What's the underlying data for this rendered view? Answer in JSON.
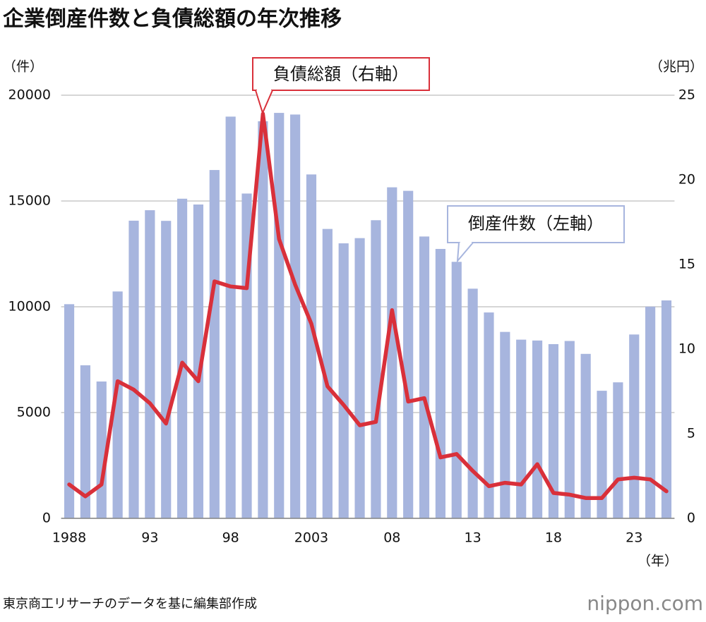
{
  "chart_data": {
    "type": "bar-line",
    "title": "企業倒産件数と負債総額の年次推移",
    "y_label": "（件）",
    "y2_label": "（兆円）",
    "x_label": "（年）",
    "source": "東京商工リサーチのデータを基に編集部作成",
    "logo": "nippon.com",
    "categories": [
      "1988",
      null,
      null,
      null,
      null,
      "93",
      null,
      null,
      null,
      null,
      "98",
      null,
      null,
      null,
      null,
      "2003",
      null,
      null,
      null,
      null,
      "08",
      null,
      null,
      null,
      null,
      "13",
      null,
      null,
      null,
      null,
      "18",
      null,
      null,
      null,
      null,
      "23",
      null,
      null
    ],
    "series": [
      {
        "name": "倒産件数（左軸）",
        "type": "bar",
        "color": "#a7b5de",
        "values": [
          10122,
          7234,
          6468,
          10723,
          14069,
          14564,
          14061,
          15108,
          14834,
          16464,
          18988,
          15352,
          18769,
          19164,
          19087,
          16255,
          13679,
          12998,
          13245,
          14091,
          15646,
          15480,
          13321,
          12734,
          12124,
          10855,
          9731,
          8812,
          8446,
          8405,
          8235,
          8383,
          7773,
          6030,
          6428,
          8690,
          10006,
          10300
        ]
      },
      {
        "name": "負債総額（右軸）",
        "type": "line",
        "axis": "y2",
        "color": "#d9303a",
        "values": [
          2.0,
          1.3,
          2.0,
          8.1,
          7.6,
          6.8,
          5.6,
          9.2,
          8.1,
          14.0,
          13.7,
          13.6,
          23.9,
          16.5,
          13.8,
          11.5,
          7.8,
          6.7,
          5.5,
          5.7,
          12.3,
          6.9,
          7.1,
          3.6,
          3.8,
          2.8,
          1.9,
          2.1,
          2.0,
          3.2,
          1.5,
          1.4,
          1.2,
          1.2,
          2.3,
          2.4,
          2.3,
          1.6
        ]
      }
    ],
    "ylim": [
      0,
      20000
    ],
    "yticks": [
      0,
      5000,
      10000,
      15000,
      20000
    ],
    "y2lim": [
      0,
      25
    ],
    "y2ticks": [
      0,
      5,
      10,
      15,
      20,
      25
    ],
    "grid": true
  }
}
